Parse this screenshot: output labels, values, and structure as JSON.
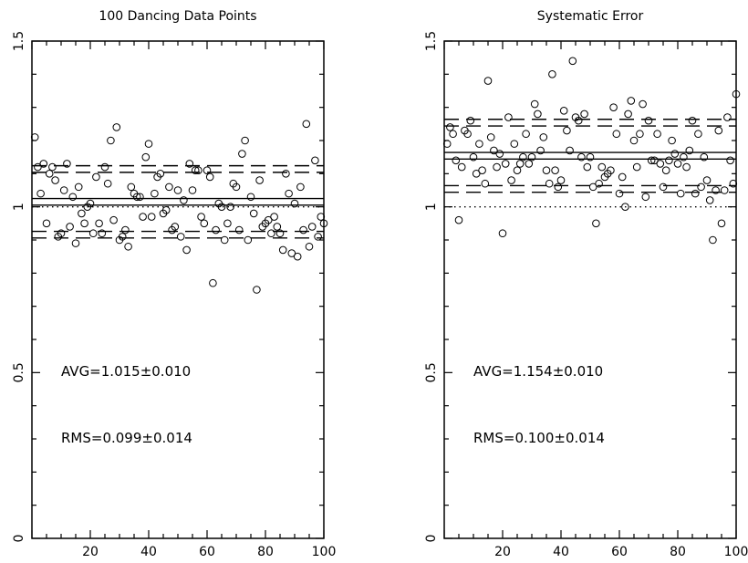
{
  "chart_data": [
    {
      "type": "scatter",
      "title": "100 Dancing Data Points",
      "xlim": [
        0,
        100
      ],
      "ylim": [
        0,
        1.5
      ],
      "x_ticks": [
        20,
        40,
        60,
        80,
        100
      ],
      "y_ticks": [
        0,
        0.5,
        1,
        1.5
      ],
      "y_tick_labels": [
        "0",
        "0.5",
        "1",
        "1.5"
      ],
      "annotations": [
        "AVG=1.015±0.010",
        "RMS=0.099±0.014"
      ],
      "reference_lines": {
        "mean": 1.015,
        "mean_band": [
          1.005,
          1.025
        ],
        "rms_upper": [
          1.104,
          1.124
        ],
        "rms_lower": [
          0.906,
          0.926
        ],
        "true_value": 1.0
      },
      "points": {
        "x": [
          1,
          2,
          3,
          4,
          5,
          6,
          7,
          8,
          9,
          10,
          11,
          12,
          13,
          14,
          15,
          16,
          17,
          18,
          19,
          20,
          21,
          22,
          23,
          24,
          25,
          26,
          27,
          28,
          29,
          30,
          31,
          32,
          33,
          34,
          35,
          36,
          37,
          38,
          39,
          40,
          41,
          42,
          43,
          44,
          45,
          46,
          47,
          48,
          49,
          50,
          51,
          52,
          53,
          54,
          55,
          56,
          57,
          58,
          59,
          60,
          61,
          62,
          63,
          64,
          65,
          66,
          67,
          68,
          69,
          70,
          71,
          72,
          73,
          74,
          75,
          76,
          77,
          78,
          79,
          80,
          81,
          82,
          83,
          84,
          85,
          86,
          87,
          88,
          89,
          90,
          91,
          92,
          93,
          94,
          95,
          96,
          97,
          98,
          99,
          100
        ],
        "y": [
          1.21,
          1.12,
          1.04,
          1.13,
          0.95,
          1.1,
          1.12,
          1.08,
          0.91,
          0.92,
          1.05,
          1.13,
          0.94,
          1.03,
          0.89,
          1.06,
          0.98,
          0.95,
          1.0,
          1.01,
          0.92,
          1.09,
          0.95,
          0.92,
          1.12,
          1.07,
          1.2,
          0.96,
          1.24,
          0.9,
          0.91,
          0.93,
          0.88,
          1.06,
          1.04,
          1.03,
          1.03,
          0.97,
          1.15,
          1.19,
          0.97,
          1.04,
          1.09,
          1.1,
          0.98,
          0.99,
          1.06,
          0.93,
          0.94,
          1.05,
          0.91,
          1.02,
          0.87,
          1.13,
          1.05,
          1.11,
          1.11,
          0.97,
          0.95,
          1.11,
          1.09,
          0.77,
          0.93,
          1.01,
          1.0,
          0.9,
          0.95,
          1.0,
          1.07,
          1.06,
          0.93,
          1.16,
          1.2,
          0.9,
          1.03,
          0.98,
          0.75,
          1.08,
          0.94,
          0.95,
          0.96,
          0.92,
          0.97,
          0.94,
          0.92,
          0.87,
          1.1,
          1.04,
          0.86,
          1.01,
          0.85,
          1.06,
          0.93,
          1.25,
          0.88,
          0.94,
          1.14,
          0.91,
          0.97,
          0.95
        ]
      }
    },
    {
      "type": "scatter",
      "title": "Systematic Error",
      "xlim": [
        0,
        100
      ],
      "ylim": [
        0,
        1.5
      ],
      "x_ticks": [
        20,
        40,
        60,
        80,
        100
      ],
      "x_tick_labels_note": "rightmost label clipped at edge",
      "y_ticks": [
        0,
        0.5,
        1,
        1.5
      ],
      "y_tick_labels": [
        "0",
        "0.5",
        "1",
        "1.5"
      ],
      "annotations": [
        "AVG=1.154±0.010",
        "RMS=0.100±0.014"
      ],
      "reference_lines": {
        "mean": 1.154,
        "mean_band": [
          1.144,
          1.164
        ],
        "rms_upper": [
          1.244,
          1.264
        ],
        "rms_lower": [
          1.044,
          1.064
        ],
        "true_value": 1.0
      },
      "points": {
        "x": [
          1,
          2,
          3,
          4,
          5,
          6,
          7,
          8,
          9,
          10,
          11,
          12,
          13,
          14,
          15,
          16,
          17,
          18,
          19,
          20,
          21,
          22,
          23,
          24,
          25,
          26,
          27,
          28,
          29,
          30,
          31,
          32,
          33,
          34,
          35,
          36,
          37,
          38,
          39,
          40,
          41,
          42,
          43,
          44,
          45,
          46,
          47,
          48,
          49,
          50,
          51,
          52,
          53,
          54,
          55,
          56,
          57,
          58,
          59,
          60,
          61,
          62,
          63,
          64,
          65,
          66,
          67,
          68,
          69,
          70,
          71,
          72,
          73,
          74,
          75,
          76,
          77,
          78,
          79,
          80,
          81,
          82,
          83,
          84,
          85,
          86,
          87,
          88,
          89,
          90,
          91,
          92,
          93,
          94,
          95,
          96,
          97,
          98,
          99,
          100
        ],
        "y": [
          1.19,
          1.24,
          1.22,
          1.14,
          0.96,
          1.12,
          1.23,
          1.22,
          1.26,
          1.15,
          1.1,
          1.19,
          1.11,
          1.07,
          1.38,
          1.21,
          1.17,
          1.12,
          1.16,
          0.92,
          1.13,
          1.27,
          1.08,
          1.19,
          1.11,
          1.13,
          1.15,
          1.22,
          1.13,
          1.15,
          1.31,
          1.28,
          1.17,
          1.21,
          1.11,
          1.07,
          1.4,
          1.11,
          1.06,
          1.08,
          1.29,
          1.23,
          1.17,
          1.44,
          1.27,
          1.26,
          1.15,
          1.28,
          1.12,
          1.15,
          1.06,
          0.95,
          1.07,
          1.12,
          1.09,
          1.1,
          1.11,
          1.3,
          1.22,
          1.04,
          1.09,
          1.0,
          1.28,
          1.32,
          1.2,
          1.12,
          1.22,
          1.31,
          1.03,
          1.26,
          1.14,
          1.14,
          1.22,
          1.13,
          1.06,
          1.11,
          1.14,
          1.2,
          1.16,
          1.13,
          1.04,
          1.15,
          1.12,
          1.17,
          1.26,
          1.04,
          1.22,
          1.06,
          1.15,
          1.08,
          1.02,
          0.9,
          1.05,
          1.23,
          0.95,
          1.05,
          1.27,
          1.14,
          1.07,
          1.34
        ]
      }
    }
  ]
}
